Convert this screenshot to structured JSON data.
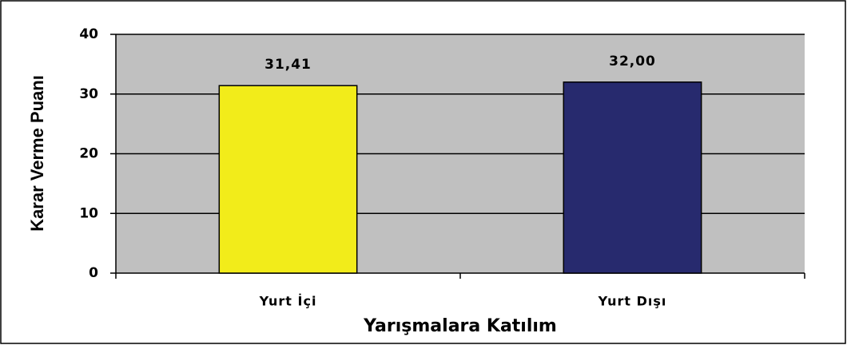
{
  "chart_data": {
    "type": "bar",
    "categories": [
      "Yurt İçi",
      "Yurt Dışı"
    ],
    "values": [
      31.41,
      32.0
    ],
    "value_labels": [
      "31,41",
      "32,00"
    ],
    "colors": [
      "#f2ec1a",
      "#272a6e"
    ],
    "xlabel": "Yarışmalara Katılım",
    "ylabel": "Karar Verme Puanı",
    "ylim": [
      0,
      40
    ],
    "yticks": [
      0,
      10,
      20,
      30,
      40
    ],
    "grid": true
  }
}
